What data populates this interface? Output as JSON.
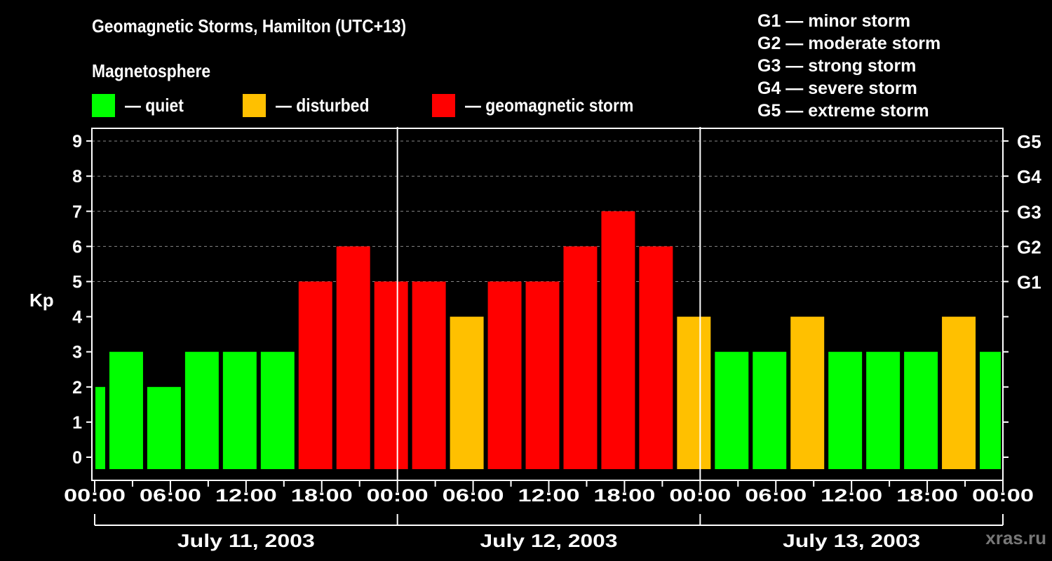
{
  "header": {
    "title": "Geomagnetic Storms, Hamilton (UTC+13)",
    "subtitle": "Magnetosphere"
  },
  "legend": [
    {
      "label": "— quiet",
      "color": "#00ff00"
    },
    {
      "label": "— disturbed",
      "color": "#ffc000"
    },
    {
      "label": "— geomagnetic storm",
      "color": "#ff0000"
    }
  ],
  "g_scale": [
    "G1 — minor storm",
    "G2 — moderate storm",
    "G3 — strong storm",
    "G4 — severe storm",
    "G5 — extreme storm"
  ],
  "watermark": "xras.ru",
  "chart_data": {
    "type": "bar",
    "title": "Geomagnetic Storms, Hamilton (UTC+13)",
    "xlabel": "",
    "ylabel": "Kp",
    "ylim": [
      0,
      9
    ],
    "yticks": [
      0,
      1,
      2,
      3,
      4,
      5,
      6,
      7,
      8,
      9
    ],
    "right_axis_labels": [
      {
        "kp": 5,
        "label": "G1"
      },
      {
        "kp": 6,
        "label": "G2"
      },
      {
        "kp": 7,
        "label": "G3"
      },
      {
        "kp": 8,
        "label": "G4"
      },
      {
        "kp": 9,
        "label": "G5"
      }
    ],
    "xtick_labels": [
      "00:00",
      "06:00",
      "12:00",
      "18:00",
      "00:00",
      "06:00",
      "12:00",
      "18:00",
      "00:00",
      "06:00",
      "12:00",
      "18:00",
      "00:00"
    ],
    "dates": [
      "July 11, 2003",
      "July 12, 2003",
      "July 13, 2003"
    ],
    "grid": "dashed horizontal at Kp 5–9",
    "legend_position": "top",
    "bar_start_hours": [
      0,
      1,
      4,
      7,
      10,
      13,
      16,
      19,
      22,
      25,
      28,
      31,
      34,
      37,
      40,
      43,
      46,
      49,
      52,
      55,
      58,
      61,
      64,
      67,
      70
    ],
    "bar_end_hours": [
      1,
      4,
      7,
      10,
      13,
      16,
      19,
      22,
      25,
      28,
      31,
      34,
      37,
      40,
      43,
      46,
      49,
      52,
      55,
      58,
      61,
      64,
      67,
      70,
      72
    ],
    "values": [
      2,
      3,
      2,
      3,
      3,
      3,
      5,
      6,
      5,
      5,
      4,
      5,
      5,
      6,
      7,
      6,
      4,
      3,
      3,
      4,
      3,
      3,
      3,
      4,
      3
    ],
    "status": [
      "quiet",
      "quiet",
      "quiet",
      "quiet",
      "quiet",
      "quiet",
      "storm",
      "storm",
      "storm",
      "storm",
      "disturbed",
      "storm",
      "storm",
      "storm",
      "storm",
      "storm",
      "disturbed",
      "quiet",
      "quiet",
      "disturbed",
      "quiet",
      "quiet",
      "quiet",
      "disturbed",
      "quiet"
    ],
    "colors": {
      "quiet": "#00ff00",
      "disturbed": "#ffc000",
      "storm": "#ff0000"
    }
  }
}
